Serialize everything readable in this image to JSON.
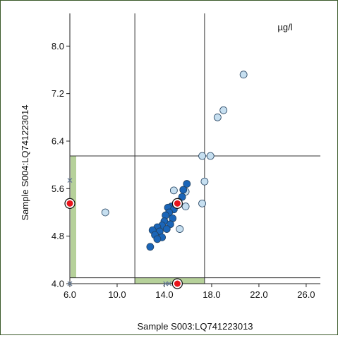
{
  "chart_data": {
    "type": "scatter",
    "title": "",
    "unit_label": "µg/l",
    "xlabel": "Sample S003:LQ741223013",
    "ylabel": "Sample S004:LQ741223014",
    "xlim": [
      6.0,
      27.2
    ],
    "ylim": [
      4.0,
      8.55
    ],
    "xticks": [
      "6.0",
      "10.0",
      "14.0",
      "18.0",
      "22.0",
      "26.0"
    ],
    "yticks": [
      "4.0",
      "4.8",
      "5.6",
      "6.4",
      "7.2",
      "8.0"
    ],
    "grid": false,
    "reference_lines": {
      "x": [
        11.5,
        17.4
      ],
      "y": [
        4.1,
        6.15
      ]
    },
    "margin_bands": {
      "x": [
        11.5,
        17.4
      ],
      "y": [
        4.1,
        6.15
      ],
      "color": "#b6d19a"
    },
    "series": [
      {
        "color": "#c6dff0",
        "points": [
          [
            20.7,
            7.52
          ],
          [
            19.0,
            6.92
          ],
          [
            18.5,
            6.8
          ],
          [
            17.2,
            6.15
          ],
          [
            17.9,
            6.15
          ],
          [
            17.4,
            5.72
          ],
          [
            14.8,
            5.57
          ],
          [
            15.8,
            5.55
          ],
          [
            17.2,
            5.35
          ],
          [
            15.8,
            5.3
          ],
          [
            9.0,
            5.2
          ],
          [
            15.3,
            4.92
          ]
        ]
      },
      {
        "color": "#1a65b8",
        "points": [
          [
            15.9,
            5.68
          ],
          [
            15.6,
            5.58
          ],
          [
            15.5,
            5.46
          ],
          [
            15.2,
            5.38
          ],
          [
            14.6,
            5.3
          ],
          [
            14.3,
            5.28
          ],
          [
            14.8,
            5.25
          ],
          [
            14.4,
            5.2
          ],
          [
            14.1,
            5.15
          ],
          [
            14.7,
            5.1
          ],
          [
            14.0,
            5.05
          ],
          [
            14.5,
            5.0
          ],
          [
            13.8,
            4.98
          ],
          [
            14.2,
            4.92
          ],
          [
            13.4,
            4.95
          ],
          [
            13.0,
            4.9
          ],
          [
            13.6,
            4.88
          ],
          [
            13.2,
            4.82
          ],
          [
            13.8,
            4.78
          ],
          [
            13.4,
            4.75
          ],
          [
            12.8,
            4.62
          ]
        ]
      }
    ],
    "highlight_points": [
      [
        15.1,
        5.35
      ]
    ],
    "marginal_markers": {
      "x": [
        [
          14.1,
          "cross"
        ],
        [
          14.4,
          "cross"
        ],
        [
          15.1,
          "highlight"
        ]
      ],
      "y": [
        [
          5.74,
          "cross"
        ],
        [
          5.35,
          "highlight"
        ],
        [
          4.0,
          "cross"
        ]
      ]
    },
    "highlight_color": "#e8141b"
  }
}
